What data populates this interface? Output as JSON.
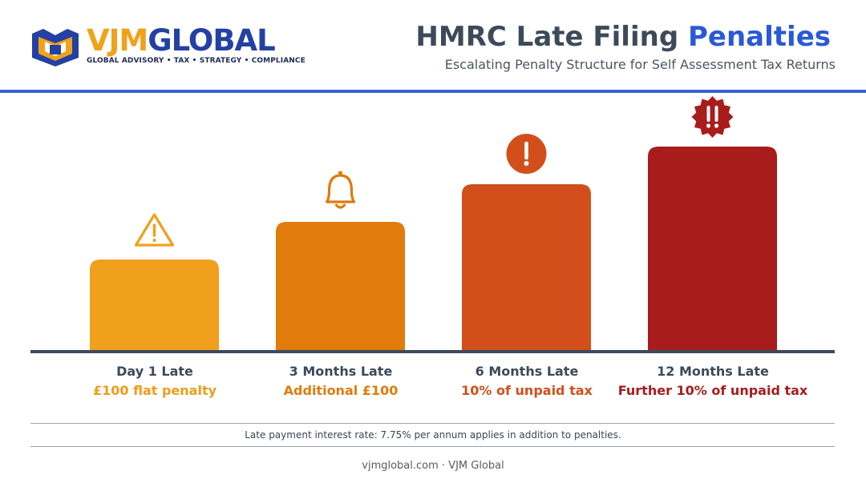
{
  "brand": {
    "name_part1": "VJM",
    "name_part2": "GLOBAL",
    "tagline": "GLOBAL ADVISORY • TAX • STRATEGY • COMPLIANCE"
  },
  "header": {
    "title_main": "HMRC Late Filing ",
    "title_accent": "Penalties",
    "subtitle": "Escalating Penalty Structure for Self Assessment Tax Returns"
  },
  "colors": {
    "bar_1": "#f0a01c",
    "bar_2": "#e07b0c",
    "bar_3": "#d24f1c",
    "bar_4": "#a81c1c",
    "header_rule": "#3a63cf",
    "title_accent": "#2a59d6"
  },
  "chart_data": {
    "type": "bar",
    "categories": [
      "Day 1 Late",
      "3 Months Late",
      "6 Months Late",
      "12 Months Late"
    ],
    "value_labels": [
      "£100 flat penalty",
      "Additional £100",
      "10% of unpaid tax",
      "Further 10% of unpaid tax"
    ],
    "severity_levels": [
      1,
      2,
      3,
      4
    ],
    "icons": [
      "warning-triangle-icon",
      "bell-icon",
      "exclamation-circle-icon",
      "double-exclamation-badge-icon"
    ],
    "legend": "none",
    "grid": false
  },
  "notes": {
    "interest": "Late payment interest rate: 7.75% per annum applies in addition to penalties."
  },
  "footer": {
    "text": "vjmglobal.com · VJM Global"
  }
}
